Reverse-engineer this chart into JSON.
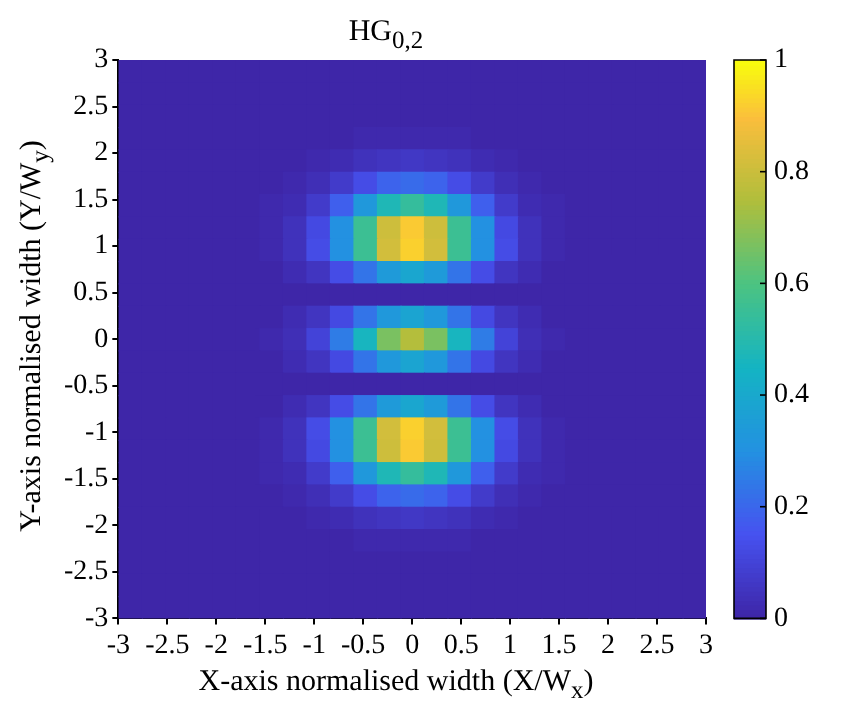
{
  "chart_data": {
    "type": "heatmap",
    "title": "HG$_{0,2}$",
    "xlabel": "X-axis normalised width (X/W$_{x}$)",
    "ylabel": "Y-axis normalised width (Y/W$_{y}$)",
    "x": [
      -2.88,
      -2.64,
      -2.4,
      -2.16,
      -1.92,
      -1.68,
      -1.44,
      -1.2,
      -0.96,
      -0.72,
      -0.48,
      -0.24,
      0,
      0.24,
      0.48,
      0.72,
      0.96,
      1.2,
      1.44,
      1.68,
      1.92,
      2.16,
      2.4,
      2.64,
      2.88
    ],
    "y": [
      2.88,
      2.64,
      2.4,
      2.16,
      1.92,
      1.68,
      1.44,
      1.2,
      0.96,
      0.72,
      0.48,
      0.24,
      0,
      -0.24,
      -0.48,
      -0.72,
      -0.96,
      -1.2,
      -1.44,
      -1.68,
      -1.92,
      -2.16,
      -2.4,
      -2.64,
      -2.88
    ],
    "xlim": [
      -3,
      3
    ],
    "ylim": [
      -3,
      3
    ],
    "xticks": [
      -3,
      -2.5,
      -2,
      -1.5,
      -1,
      -0.5,
      0,
      0.5,
      1,
      1.5,
      2,
      2.5,
      3
    ],
    "yticks": [
      -3,
      -2.5,
      -2,
      -1.5,
      -1,
      -0.5,
      0,
      0.5,
      1,
      1.5,
      2,
      2.5,
      3
    ],
    "clim": [
      0,
      1
    ],
    "cticks": [
      0,
      0.2,
      0.4,
      0.6,
      0.8,
      1
    ],
    "cells": [
      [
        0,
        0,
        0,
        0,
        0,
        0,
        0,
        0,
        0,
        0,
        0,
        0,
        0,
        0,
        0,
        0,
        0,
        0,
        0,
        0,
        0,
        0,
        0,
        0,
        0
      ],
      [
        0,
        0,
        0,
        0,
        0,
        0,
        0,
        0,
        0,
        0,
        0,
        0,
        0,
        0,
        0,
        0,
        0,
        0,
        0,
        0,
        0,
        0,
        0,
        0,
        0
      ],
      [
        0,
        0,
        0,
        0,
        0,
        0,
        0,
        0,
        0,
        0,
        0,
        0,
        0,
        0,
        0,
        0,
        0,
        0,
        0,
        0,
        0,
        0,
        0,
        0,
        0
      ],
      [
        0,
        0,
        0,
        0,
        0,
        0,
        0,
        0,
        0,
        0,
        0.01,
        0.01,
        0.01,
        0.01,
        0.01,
        0,
        0,
        0,
        0,
        0,
        0,
        0,
        0,
        0,
        0
      ],
      [
        0,
        0,
        0,
        0,
        0,
        0,
        0,
        0,
        0.01,
        0.02,
        0.04,
        0.05,
        0.06,
        0.05,
        0.04,
        0.02,
        0.01,
        0,
        0,
        0,
        0,
        0,
        0,
        0,
        0
      ],
      [
        0,
        0,
        0,
        0,
        0,
        0,
        0,
        0.01,
        0.03,
        0.07,
        0.13,
        0.19,
        0.21,
        0.19,
        0.13,
        0.07,
        0.03,
        0.01,
        0,
        0,
        0,
        0,
        0,
        0,
        0
      ],
      [
        0,
        0,
        0,
        0,
        0,
        0,
        0.01,
        0.02,
        0.07,
        0.18,
        0.33,
        0.48,
        0.54,
        0.48,
        0.33,
        0.18,
        0.07,
        0.02,
        0.01,
        0,
        0,
        0,
        0,
        0,
        0
      ],
      [
        0,
        0,
        0,
        0,
        0,
        0,
        0.01,
        0.04,
        0.12,
        0.3,
        0.56,
        0.81,
        0.92,
        0.81,
        0.56,
        0.3,
        0.12,
        0.04,
        0.01,
        0,
        0,
        0,
        0,
        0,
        0
      ],
      [
        0,
        0,
        0,
        0,
        0,
        0,
        0.01,
        0.04,
        0.13,
        0.3,
        0.56,
        0.82,
        0.93,
        0.82,
        0.56,
        0.3,
        0.13,
        0.04,
        0.01,
        0,
        0,
        0,
        0,
        0,
        0
      ],
      [
        0,
        0,
        0,
        0,
        0,
        0,
        0,
        0.02,
        0.05,
        0.13,
        0.23,
        0.34,
        0.39,
        0.34,
        0.23,
        0.13,
        0.05,
        0.02,
        0,
        0,
        0,
        0,
        0,
        0,
        0
      ],
      [
        0,
        0,
        0,
        0,
        0,
        0,
        0,
        0,
        0,
        0,
        0,
        0,
        0,
        0,
        0,
        0,
        0,
        0,
        0,
        0,
        0,
        0,
        0,
        0,
        0
      ],
      [
        0,
        0,
        0,
        0,
        0,
        0,
        0,
        0.02,
        0.05,
        0.12,
        0.23,
        0.33,
        0.38,
        0.33,
        0.23,
        0.12,
        0.05,
        0.02,
        0,
        0,
        0,
        0,
        0,
        0,
        0
      ],
      [
        0,
        0,
        0,
        0,
        0,
        0,
        0.01,
        0.03,
        0.1,
        0.25,
        0.46,
        0.67,
        0.76,
        0.67,
        0.46,
        0.25,
        0.1,
        0.03,
        0.01,
        0,
        0,
        0,
        0,
        0,
        0
      ],
      [
        0,
        0,
        0,
        0,
        0,
        0,
        0,
        0.02,
        0.05,
        0.12,
        0.23,
        0.33,
        0.38,
        0.33,
        0.23,
        0.12,
        0.05,
        0.02,
        0,
        0,
        0,
        0,
        0,
        0,
        0
      ],
      [
        0,
        0,
        0,
        0,
        0,
        0,
        0,
        0,
        0,
        0,
        0,
        0,
        0,
        0,
        0,
        0,
        0,
        0,
        0,
        0,
        0,
        0,
        0,
        0,
        0
      ],
      [
        0,
        0,
        0,
        0,
        0,
        0,
        0,
        0.02,
        0.05,
        0.13,
        0.23,
        0.34,
        0.39,
        0.34,
        0.23,
        0.13,
        0.05,
        0.02,
        0,
        0,
        0,
        0,
        0,
        0,
        0
      ],
      [
        0,
        0,
        0,
        0,
        0,
        0,
        0.01,
        0.04,
        0.13,
        0.3,
        0.56,
        0.82,
        0.93,
        0.82,
        0.56,
        0.3,
        0.13,
        0.04,
        0.01,
        0,
        0,
        0,
        0,
        0,
        0
      ],
      [
        0,
        0,
        0,
        0,
        0,
        0,
        0.01,
        0.04,
        0.12,
        0.3,
        0.56,
        0.81,
        0.92,
        0.81,
        0.56,
        0.3,
        0.12,
        0.04,
        0.01,
        0,
        0,
        0,
        0,
        0,
        0
      ],
      [
        0,
        0,
        0,
        0,
        0,
        0,
        0.01,
        0.02,
        0.07,
        0.18,
        0.33,
        0.48,
        0.54,
        0.48,
        0.33,
        0.18,
        0.07,
        0.02,
        0.01,
        0,
        0,
        0,
        0,
        0,
        0
      ],
      [
        0,
        0,
        0,
        0,
        0,
        0,
        0,
        0.01,
        0.03,
        0.07,
        0.13,
        0.19,
        0.21,
        0.19,
        0.13,
        0.07,
        0.03,
        0.01,
        0,
        0,
        0,
        0,
        0,
        0,
        0
      ],
      [
        0,
        0,
        0,
        0,
        0,
        0,
        0,
        0,
        0.01,
        0.02,
        0.04,
        0.05,
        0.06,
        0.05,
        0.04,
        0.02,
        0.01,
        0,
        0,
        0,
        0,
        0,
        0,
        0,
        0
      ],
      [
        0,
        0,
        0,
        0,
        0,
        0,
        0,
        0,
        0,
        0,
        0.01,
        0.01,
        0.01,
        0.01,
        0.01,
        0,
        0,
        0,
        0,
        0,
        0,
        0,
        0,
        0,
        0
      ],
      [
        0,
        0,
        0,
        0,
        0,
        0,
        0,
        0,
        0,
        0,
        0,
        0,
        0,
        0,
        0,
        0,
        0,
        0,
        0,
        0,
        0,
        0,
        0,
        0,
        0
      ],
      [
        0,
        0,
        0,
        0,
        0,
        0,
        0,
        0,
        0,
        0,
        0,
        0,
        0,
        0,
        0,
        0,
        0,
        0,
        0,
        0,
        0,
        0,
        0,
        0,
        0
      ],
      [
        0,
        0,
        0,
        0,
        0,
        0,
        0,
        0,
        0,
        0,
        0,
        0,
        0,
        0,
        0,
        0,
        0,
        0,
        0,
        0,
        0,
        0,
        0,
        0,
        0
      ]
    ]
  }
}
